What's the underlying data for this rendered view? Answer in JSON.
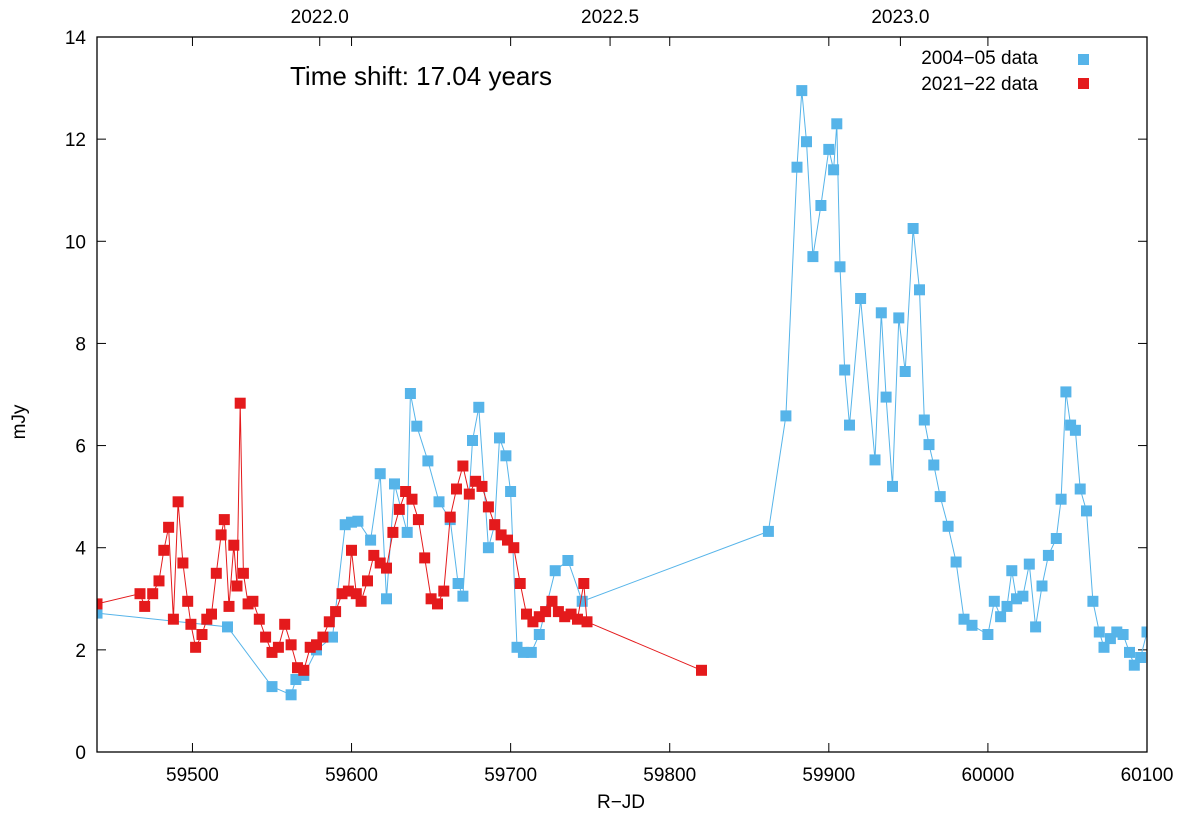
{
  "chart_data": {
    "type": "scatter",
    "title": "",
    "xlabel": "R−JD",
    "ylabel": "mJy",
    "xlim": [
      59440,
      60100
    ],
    "ylim": [
      0,
      14
    ],
    "x_ticks": [
      59500,
      59600,
      59700,
      59800,
      59900,
      60000,
      60100
    ],
    "x_tick_labels": [
      "59500",
      "59600",
      "59700",
      "59800",
      "59900",
      "60000",
      "60100"
    ],
    "y_ticks": [
      0,
      2,
      4,
      6,
      8,
      10,
      12,
      14
    ],
    "y_tick_labels": [
      "0",
      "2",
      "4",
      "6",
      "8",
      "10",
      "12",
      "14"
    ],
    "top_axis": {
      "ticks": [
        59580,
        59762.5,
        59945
      ],
      "tick_labels": [
        "2022.0",
        "2022.5",
        "2023.0"
      ]
    },
    "annotation": "Time shift: 17.04 years",
    "legend_position": "top-right",
    "series": [
      {
        "name": "2004−05 data",
        "color": "#56b4e9",
        "marker": "square",
        "connected": true,
        "x": [
          59440,
          59522,
          59550,
          59562,
          59565,
          59570,
          59578,
          59588,
          59596,
          59600,
          59604,
          59612,
          59618,
          59622,
          59627,
          59635,
          59637,
          59641,
          59648,
          59655,
          59662,
          59667,
          59670,
          59676,
          59680,
          59686,
          59690,
          59693,
          59697,
          59700,
          59704,
          59708,
          59713,
          59718,
          59728,
          59736,
          59745,
          59862,
          59873,
          59880,
          59883,
          59886,
          59890,
          59895,
          59900,
          59903,
          59905,
          59907,
          59910,
          59913,
          59920,
          59929,
          59933,
          59936,
          59940,
          59944,
          59948,
          59953,
          59957,
          59960,
          59963,
          59966,
          59970,
          59975,
          59980,
          59985,
          59990,
          60000,
          60004,
          60008,
          60012,
          60015,
          60018,
          60022,
          60026,
          60030,
          60034,
          60038,
          60043,
          60046,
          60049,
          60052,
          60055,
          60058,
          60062,
          60066,
          60070,
          60073,
          60077,
          60081,
          60085,
          60089,
          60092,
          60096,
          60100
        ],
        "y": [
          2.72,
          2.45,
          1.28,
          1.12,
          1.42,
          1.5,
          2.0,
          2.25,
          4.45,
          4.5,
          4.52,
          4.15,
          5.45,
          3.0,
          5.25,
          4.3,
          7.02,
          6.38,
          5.7,
          4.9,
          4.55,
          3.3,
          3.05,
          6.1,
          6.75,
          4.0,
          4.45,
          6.15,
          5.8,
          5.1,
          2.05,
          1.95,
          1.95,
          2.3,
          3.55,
          3.75,
          2.95,
          4.32,
          6.58,
          11.45,
          12.95,
          11.95,
          9.7,
          10.7,
          11.8,
          11.4,
          12.3,
          9.5,
          7.48,
          6.4,
          8.88,
          5.72,
          8.6,
          6.95,
          5.2,
          8.5,
          7.45,
          10.25,
          9.05,
          6.5,
          6.02,
          5.62,
          5.0,
          4.42,
          3.72,
          2.6,
          2.48,
          2.3,
          2.95,
          2.65,
          2.85,
          3.55,
          3.0,
          3.05,
          3.68,
          2.45,
          3.25,
          3.85,
          4.18,
          4.95,
          7.05,
          6.4,
          6.3,
          5.15,
          4.72,
          2.95,
          2.35,
          2.05,
          2.22,
          2.35,
          2.3,
          1.95,
          1.7,
          1.85,
          2.35
        ]
      },
      {
        "name": "2021−22 data",
        "color": "#e41a1c",
        "marker": "square",
        "connected": true,
        "x": [
          59440,
          59467,
          59470,
          59475,
          59479,
          59482,
          59485,
          59488,
          59491,
          59494,
          59497,
          59499,
          59502,
          59506,
          59509,
          59512,
          59515,
          59518,
          59520,
          59523,
          59526,
          59528,
          59530,
          59532,
          59535,
          59538,
          59542,
          59546,
          59550,
          59554,
          59558,
          59562,
          59566,
          59570,
          59574,
          59578,
          59582,
          59586,
          59590,
          59594,
          59598,
          59600,
          59603,
          59606,
          59610,
          59614,
          59618,
          59622,
          59626,
          59630,
          59634,
          59638,
          59642,
          59646,
          59650,
          59654,
          59658,
          59662,
          59666,
          59670,
          59674,
          59678,
          59682,
          59686,
          59690,
          59694,
          59698,
          59702,
          59706,
          59710,
          59714,
          59718,
          59722,
          59726,
          59730,
          59734,
          59738,
          59742,
          59746,
          59748,
          59820
        ],
        "y": [
          2.9,
          3.1,
          2.85,
          3.1,
          3.35,
          3.95,
          4.4,
          2.6,
          4.9,
          3.7,
          2.95,
          2.5,
          2.05,
          2.3,
          2.6,
          2.7,
          3.5,
          4.25,
          4.55,
          2.85,
          4.05,
          3.25,
          6.83,
          3.5,
          2.9,
          2.95,
          2.6,
          2.25,
          1.95,
          2.05,
          2.5,
          2.1,
          1.65,
          1.6,
          2.05,
          2.1,
          2.25,
          2.55,
          2.75,
          3.1,
          3.15,
          3.95,
          3.1,
          2.95,
          3.35,
          3.85,
          3.7,
          3.6,
          4.3,
          4.75,
          5.1,
          4.95,
          4.55,
          3.8,
          3.0,
          2.9,
          3.15,
          4.6,
          5.15,
          5.6,
          5.05,
          5.3,
          5.2,
          4.8,
          4.45,
          4.25,
          4.15,
          4.0,
          3.3,
          2.7,
          2.55,
          2.65,
          2.75,
          2.95,
          2.75,
          2.65,
          2.7,
          2.6,
          3.3,
          2.55,
          1.6
        ]
      }
    ]
  }
}
